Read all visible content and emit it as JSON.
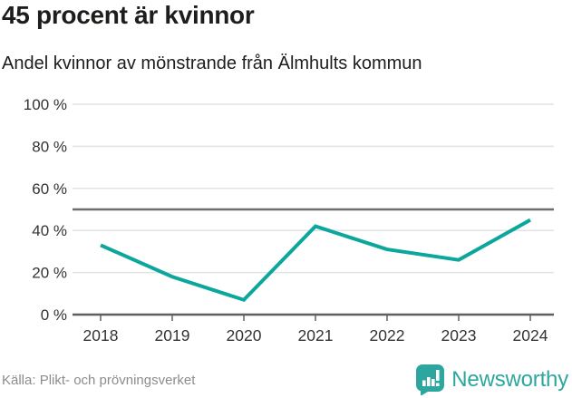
{
  "header": {
    "title": "45 procent är kvinnor",
    "subtitle": "Andel kvinnor av mönstrande från Älmhults kommun"
  },
  "footer": {
    "source": "Källa: Plikt- och prövningsverket",
    "brand": "Newsworthy"
  },
  "colors": {
    "line": "#0ca79c",
    "grid": "#e3e3e3",
    "axis": "#5f5f5f",
    "reference": "#6e6e6e",
    "tick_text": "#333333",
    "muted": "#8c8c8c",
    "brand": "#2da6a0"
  },
  "chart_data": {
    "type": "line",
    "title": "45 procent är kvinnor",
    "subtitle": "Andel kvinnor av mönstrande från Älmhults kommun",
    "source": "Källa: Plikt- och prövningsverket",
    "x": [
      2018,
      2019,
      2020,
      2021,
      2022,
      2023,
      2024
    ],
    "values": [
      33,
      18,
      7,
      42,
      31,
      26,
      45
    ],
    "unit": "%",
    "ylim": [
      0,
      100
    ],
    "yticks": [
      0,
      20,
      40,
      60,
      80,
      100
    ],
    "ytick_labels": [
      "0 %",
      "20 %",
      "40 %",
      "60 %",
      "80 %",
      "100 %"
    ],
    "reference_line": 50,
    "grid": true,
    "legend": "none"
  }
}
